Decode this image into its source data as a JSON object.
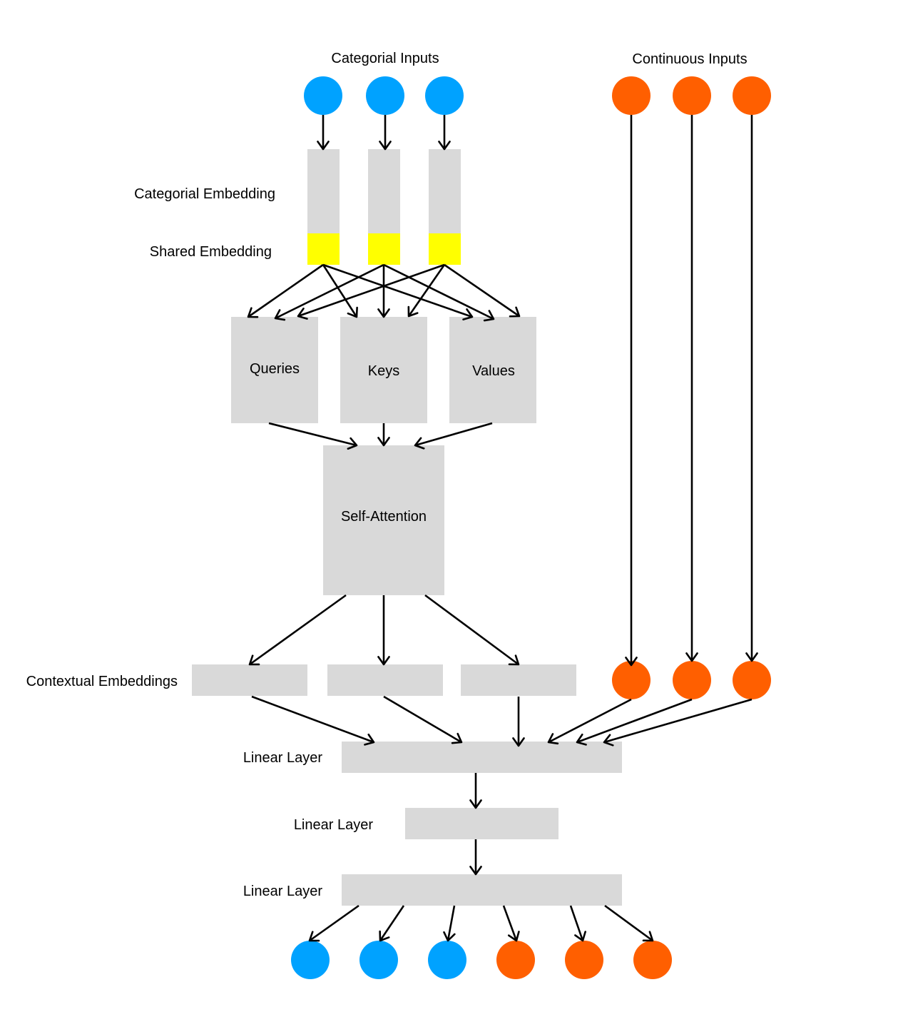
{
  "labels": {
    "categorial_inputs": "Categorial Inputs",
    "continuous_inputs": "Continuous Inputs",
    "categorial_embedding": "Categorial Embedding",
    "shared_embedding": "Shared Embedding",
    "queries": "Queries",
    "keys": "Keys",
    "values": "Values",
    "self_attention": "Self-Attention",
    "contextual_embeddings": "Contextual Embeddings",
    "linear_layer_1": "Linear Layer",
    "linear_layer_2": "Linear Layer",
    "linear_layer_3": "Linear Layer"
  },
  "colors": {
    "categorical": "#00a2ff",
    "continuous": "#ff5f00",
    "block": "#d9d9d9",
    "shared_embedding": "#ffff00",
    "arrow": "#000000"
  }
}
